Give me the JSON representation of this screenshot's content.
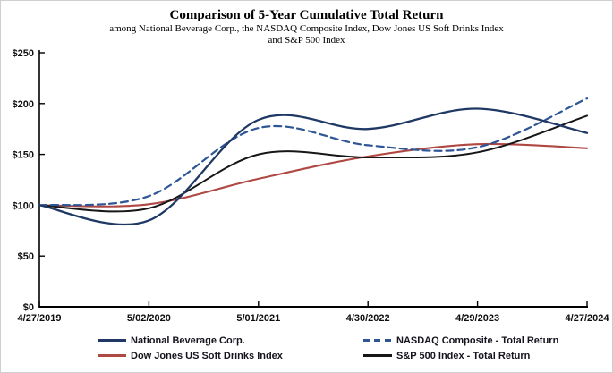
{
  "title": "Comparison of 5-Year Cumulative Total Return",
  "subtitle_line1": "among National Beverage Corp., the NASDAQ Composite Index, Dow Jones US Soft Drinks Index",
  "subtitle_line2": "and S&P 500 Index",
  "chart_data": {
    "type": "line",
    "smooth": true,
    "grid": false,
    "x_tick_labels": [
      "4/27/2019",
      "5/02/2020",
      "5/01/2021",
      "4/30/2022",
      "4/29/2023",
      "4/27/2024"
    ],
    "y_tick_labels": [
      "$0",
      "$50",
      "$100",
      "$150",
      "$200",
      "$250"
    ],
    "y_axis": {
      "min": 0,
      "max": 250,
      "step": 50,
      "prefix": "$"
    },
    "axis_color": "#000000",
    "series": [
      {
        "name": "National Beverage Corp.",
        "color": "#1F3864",
        "style": "solid",
        "width": 2.3,
        "values": [
          100,
          85,
          184,
          175,
          195,
          171
        ]
      },
      {
        "name": "NASDAQ Composite - Total Return",
        "color": "#2E5596",
        "style": "dashed",
        "width": 2.2,
        "values": [
          100,
          109,
          176,
          159,
          157,
          205
        ]
      },
      {
        "name": "Dow Jones US Soft Drinks Index",
        "color": "#AF4843",
        "style": "solid",
        "width": 2.1,
        "values": [
          100,
          101,
          126,
          148,
          160,
          156
        ]
      },
      {
        "name": "S&P 500 Index - Total Return",
        "color": "#161616",
        "style": "solid",
        "width": 2.0,
        "values": [
          100,
          97,
          150,
          147,
          152,
          188
        ]
      }
    ],
    "legend_position": "bottom",
    "legend_columns": [
      [
        0,
        2
      ],
      [
        1,
        3
      ]
    ]
  }
}
